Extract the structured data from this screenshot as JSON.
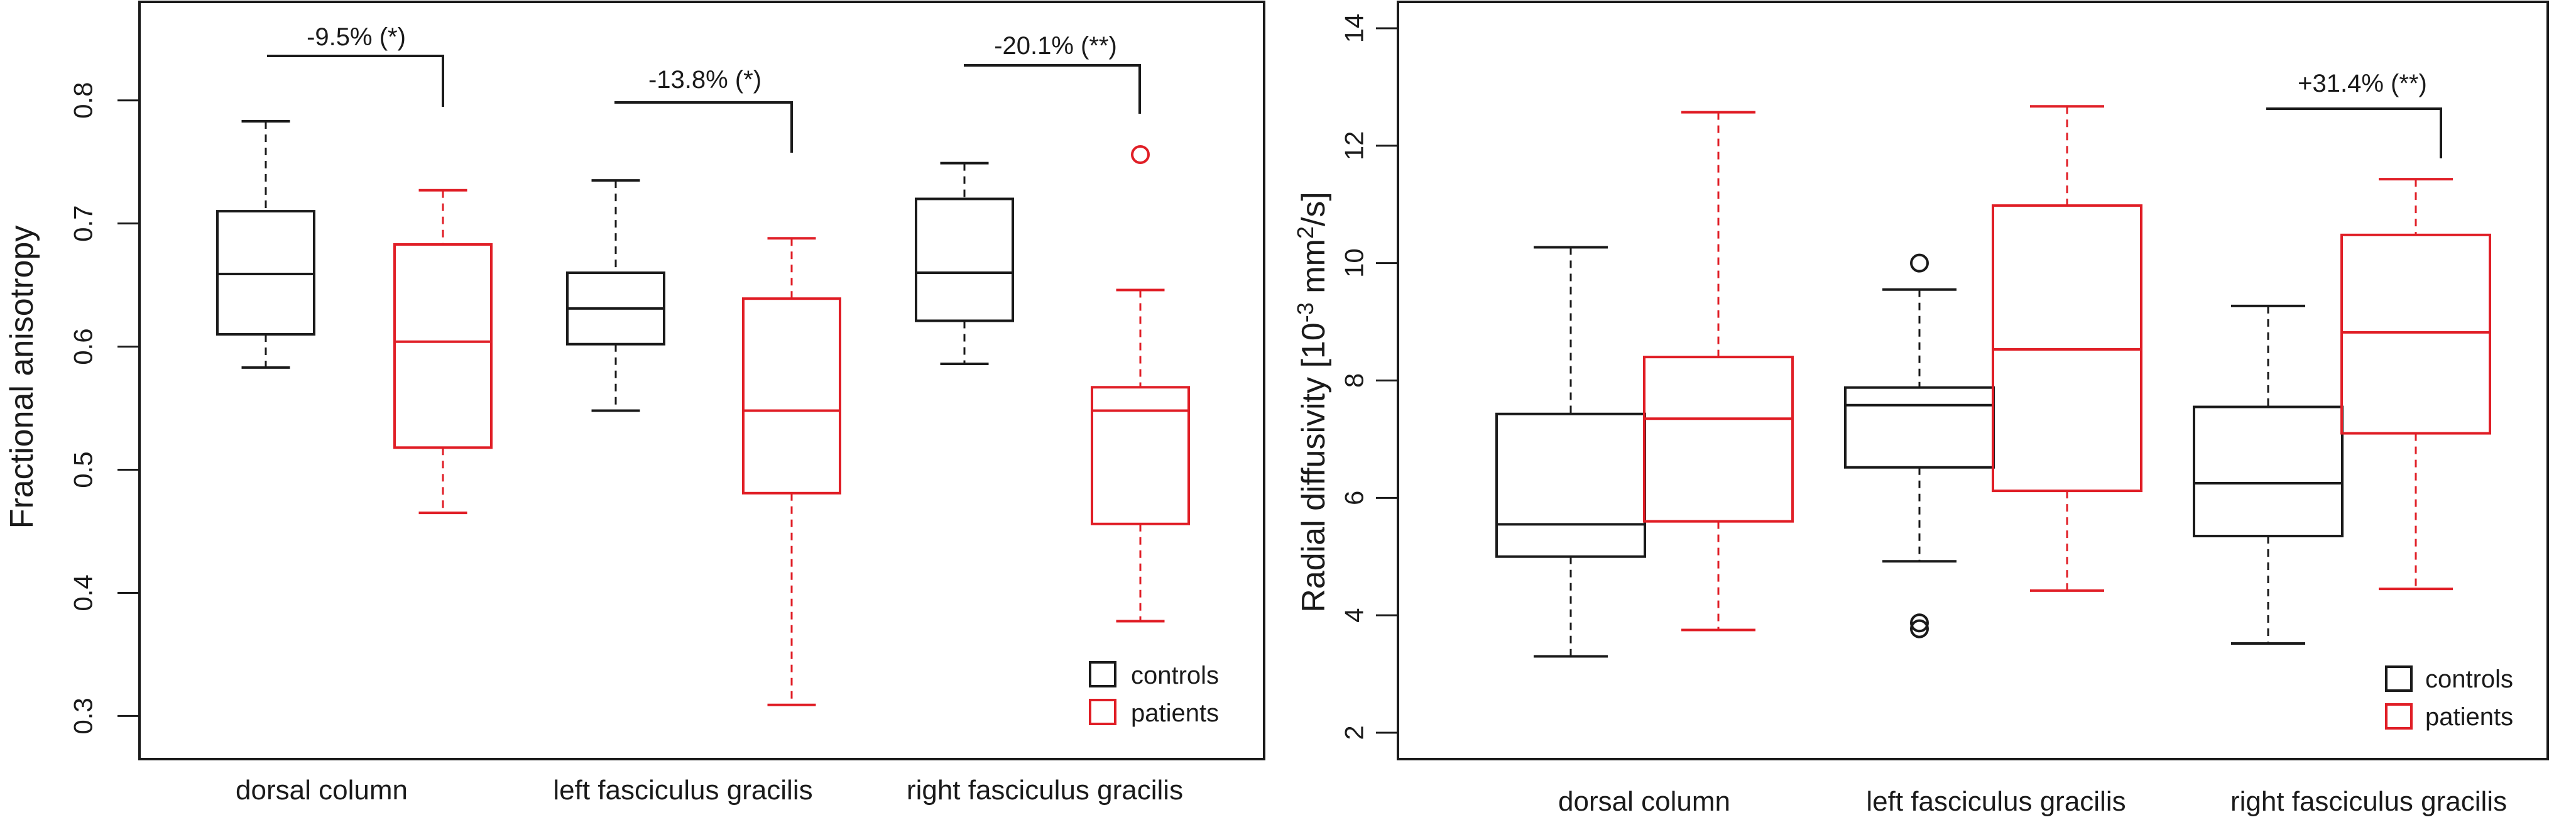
{
  "colors": {
    "controls": "#1a1a1a",
    "patients": "#e01e26"
  },
  "chart_data": [
    {
      "type": "box",
      "ylabel": "Fractional anisotropy",
      "ylim": [
        0.265,
        0.88
      ],
      "yticks": [
        "0.3",
        "0.4",
        "0.5",
        "0.6",
        "0.7",
        "0.8"
      ],
      "categories": [
        "dorsal column",
        "left fasciculus gracilis",
        "right fasciculus gracilis"
      ],
      "legend": {
        "placement": "bottom-right",
        "entries": [
          "controls",
          "patients"
        ]
      },
      "groups": [
        {
          "category": "dorsal column",
          "controls": {
            "min": 0.583,
            "q1": 0.61,
            "median": 0.659,
            "q3": 0.71,
            "max": 0.783,
            "outliers": []
          },
          "patients": {
            "min": 0.465,
            "q1": 0.518,
            "median": 0.604,
            "q3": 0.683,
            "max": 0.727,
            "outliers": []
          },
          "annotation": "-9.5% (*)"
        },
        {
          "category": "left fasciculus gracilis",
          "controls": {
            "min": 0.548,
            "q1": 0.602,
            "median": 0.631,
            "q3": 0.66,
            "max": 0.735,
            "outliers": []
          },
          "patients": {
            "min": 0.309,
            "q1": 0.481,
            "median": 0.548,
            "q3": 0.639,
            "max": 0.688,
            "outliers": []
          },
          "annotation": "-13.8% (*)"
        },
        {
          "category": "right fasciculus gracilis",
          "controls": {
            "min": 0.586,
            "q1": 0.621,
            "median": 0.66,
            "q3": 0.72,
            "max": 0.749,
            "outliers": []
          },
          "patients": {
            "min": 0.377,
            "q1": 0.456,
            "median": 0.548,
            "q3": 0.567,
            "max": 0.646,
            "outliers": [
              0.756
            ]
          },
          "annotation": "-20.1% (**)"
        }
      ]
    },
    {
      "type": "box",
      "ylabel": "Radial diffusivity [10",
      "ylabel_sup1": "-3",
      "ylabel_mid": " mm",
      "ylabel_sup2": "2",
      "ylabel_end": "/s]",
      "ylim": [
        1.55,
        14.45
      ],
      "yticks": [
        "2",
        "4",
        "6",
        "8",
        "10",
        "12",
        "14"
      ],
      "categories": [
        "dorsal column",
        "left fasciculus gracilis",
        "right fasciculus gracilis"
      ],
      "legend": {
        "placement": "bottom-right",
        "entries": [
          "controls",
          "patients"
        ]
      },
      "groups": [
        {
          "category": "dorsal column",
          "controls": {
            "min": 3.3,
            "q1": 5.0,
            "median": 5.55,
            "q3": 7.43,
            "max": 10.27,
            "outliers": []
          },
          "patients": {
            "min": 3.75,
            "q1": 5.6,
            "median": 7.35,
            "q3": 8.4,
            "max": 12.57,
            "outliers": []
          },
          "annotation": ""
        },
        {
          "category": "left fasciculus gracilis",
          "controls": {
            "min": 4.92,
            "q1": 6.52,
            "median": 7.58,
            "q3": 7.88,
            "max": 9.55,
            "outliers": [
              3.77,
              3.87,
              10.0
            ]
          },
          "patients": {
            "min": 4.42,
            "q1": 6.12,
            "median": 8.53,
            "q3": 10.98,
            "max": 12.67,
            "outliers": []
          },
          "annotation": ""
        },
        {
          "category": "right fasciculus gracilis",
          "controls": {
            "min": 3.52,
            "q1": 5.35,
            "median": 6.25,
            "q3": 7.55,
            "max": 9.27,
            "outliers": []
          },
          "patients": {
            "min": 4.45,
            "q1": 7.1,
            "median": 8.82,
            "q3": 10.48,
            "max": 11.43,
            "outliers": []
          },
          "annotation": "+31.4% (**)"
        }
      ]
    }
  ]
}
